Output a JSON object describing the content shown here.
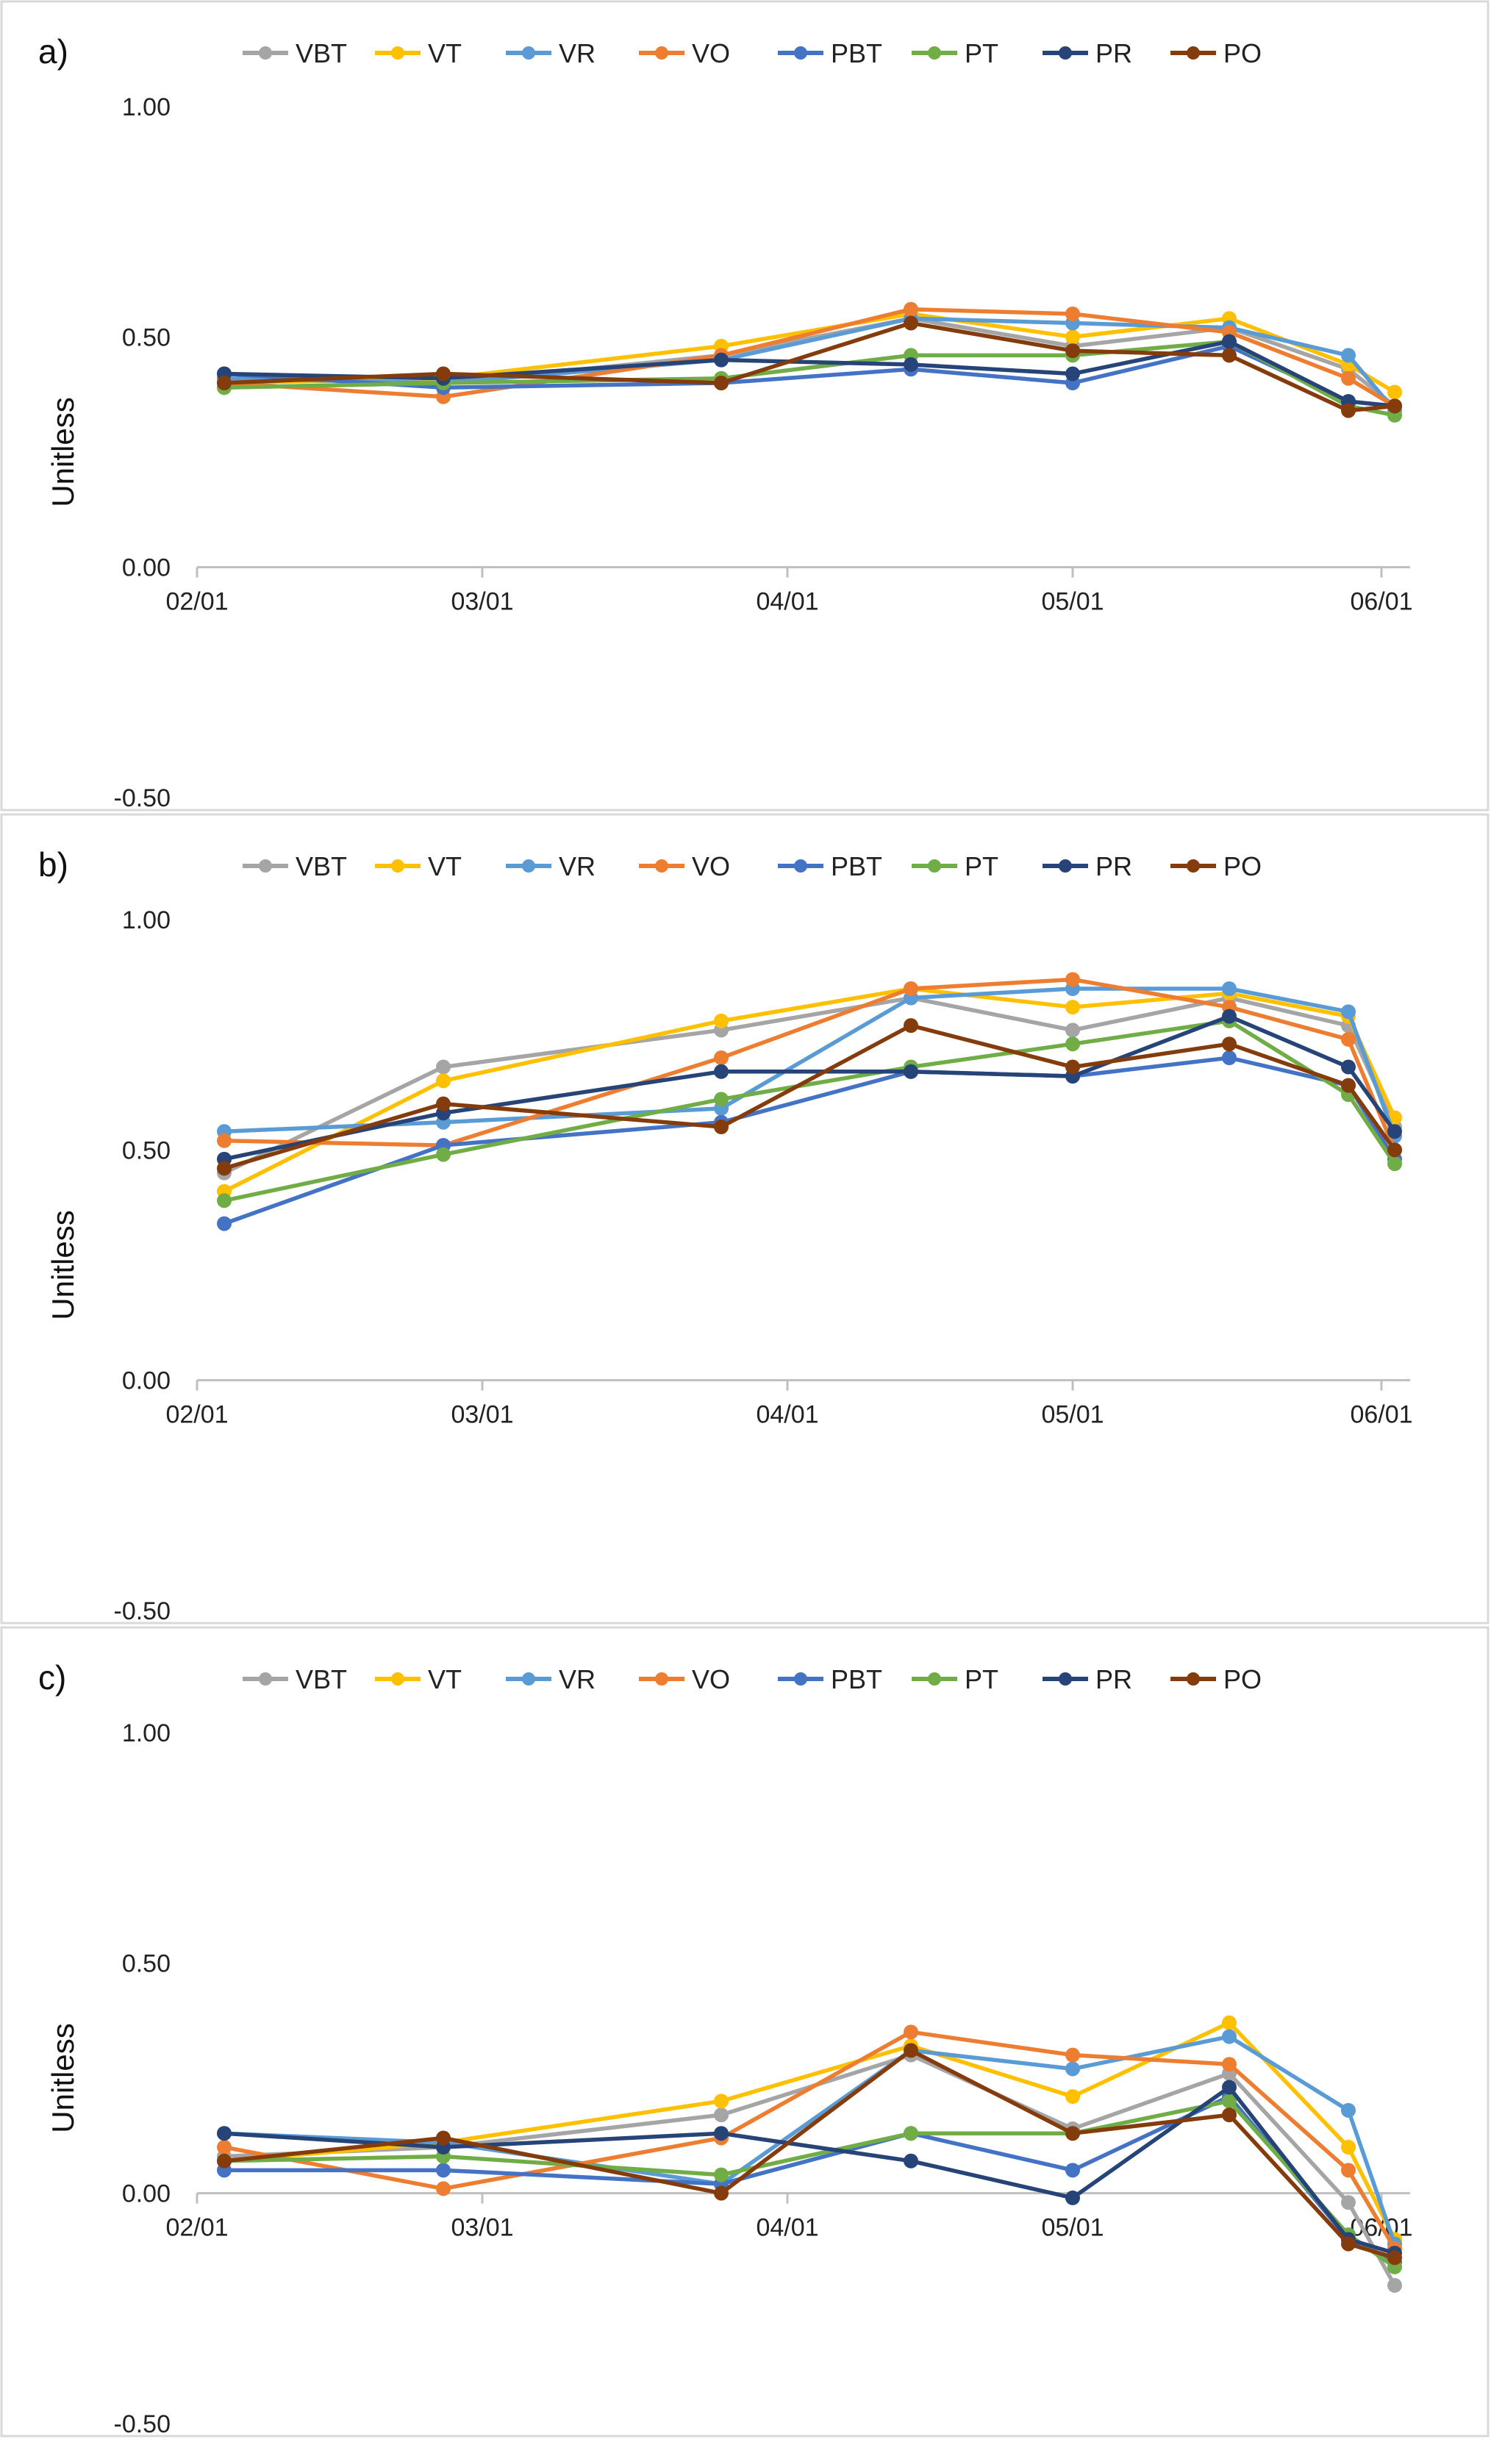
{
  "chart_data": [
    {
      "type": "line",
      "panel_label": "a)",
      "ylabel": "Unitless",
      "ylim": [
        -0.5,
        1.0
      ],
      "yticks": [
        "-0.50",
        "0.00",
        "0.50",
        "1.00"
      ],
      "x_tick_labels": [
        "02/01",
        "03/01",
        "04/01",
        "05/01",
        "06/01"
      ],
      "x_dates": [
        "02/07",
        "02/28",
        "03/28",
        "04/14",
        "05/01",
        "05/17",
        "05/29",
        "06/01"
      ],
      "series": [
        {
          "name": "VBT",
          "color": "#a5a5a5",
          "values": [
            0.39,
            0.4,
            0.46,
            0.54,
            0.48,
            0.52,
            0.43,
            0.35
          ]
        },
        {
          "name": "VT",
          "color": "#ffc000",
          "values": [
            0.4,
            0.41,
            0.48,
            0.55,
            0.5,
            0.54,
            0.44,
            0.38
          ]
        },
        {
          "name": "VR",
          "color": "#5b9bd5",
          "values": [
            0.41,
            0.4,
            0.45,
            0.54,
            0.53,
            0.52,
            0.46,
            0.34
          ]
        },
        {
          "name": "VO",
          "color": "#ed7d31",
          "values": [
            0.4,
            0.37,
            0.46,
            0.56,
            0.55,
            0.51,
            0.41,
            0.35
          ]
        },
        {
          "name": "PBT",
          "color": "#4472c4",
          "values": [
            0.42,
            0.39,
            0.4,
            0.43,
            0.4,
            0.48,
            0.36,
            0.35
          ]
        },
        {
          "name": "PT",
          "color": "#70ad47",
          "values": [
            0.39,
            0.4,
            0.41,
            0.46,
            0.46,
            0.49,
            0.35,
            0.33
          ]
        },
        {
          "name": "PR",
          "color": "#264478",
          "values": [
            0.42,
            0.41,
            0.45,
            0.44,
            0.42,
            0.49,
            0.36,
            0.35
          ]
        },
        {
          "name": "PO",
          "color": "#843c0c",
          "values": [
            0.4,
            0.42,
            0.4,
            0.53,
            0.47,
            0.46,
            0.34,
            0.35
          ]
        }
      ]
    },
    {
      "type": "line",
      "panel_label": "b)",
      "ylabel": "Unitless",
      "ylim": [
        -0.5,
        1.0
      ],
      "yticks": [
        "-0.50",
        "0.00",
        "0.50",
        "1.00"
      ],
      "x_tick_labels": [
        "02/01",
        "03/01",
        "04/01",
        "05/01",
        "06/01"
      ],
      "x_dates": [
        "02/07",
        "02/28",
        "03/28",
        "04/14",
        "05/01",
        "05/17",
        "05/29",
        "06/01"
      ],
      "series": [
        {
          "name": "VBT",
          "color": "#a5a5a5",
          "values": [
            0.45,
            0.68,
            0.76,
            0.83,
            0.76,
            0.83,
            0.77,
            0.55
          ]
        },
        {
          "name": "VT",
          "color": "#ffc000",
          "values": [
            0.41,
            0.65,
            0.78,
            0.85,
            0.81,
            0.84,
            0.79,
            0.57
          ]
        },
        {
          "name": "VR",
          "color": "#5b9bd5",
          "values": [
            0.54,
            0.56,
            0.59,
            0.83,
            0.85,
            0.85,
            0.8,
            0.53
          ]
        },
        {
          "name": "VO",
          "color": "#ed7d31",
          "values": [
            0.52,
            0.51,
            0.7,
            0.85,
            0.87,
            0.81,
            0.74,
            0.5
          ]
        },
        {
          "name": "PBT",
          "color": "#4472c4",
          "values": [
            0.34,
            0.51,
            0.56,
            0.67,
            0.66,
            0.7,
            0.64,
            0.48
          ]
        },
        {
          "name": "PT",
          "color": "#70ad47",
          "values": [
            0.39,
            0.49,
            0.61,
            0.68,
            0.73,
            0.78,
            0.62,
            0.47
          ]
        },
        {
          "name": "PR",
          "color": "#264478",
          "values": [
            0.48,
            0.58,
            0.67,
            0.67,
            0.66,
            0.79,
            0.68,
            0.54
          ]
        },
        {
          "name": "PO",
          "color": "#843c0c",
          "values": [
            0.46,
            0.6,
            0.55,
            0.77,
            0.68,
            0.73,
            0.64,
            0.5
          ]
        }
      ]
    },
    {
      "type": "line",
      "panel_label": "c)",
      "ylabel": "Unitless",
      "ylim": [
        -0.5,
        1.0
      ],
      "yticks": [
        "-0.50",
        "0.00",
        "0.50",
        "1.00"
      ],
      "x_tick_labels": [
        "02/01",
        "03/01",
        "04/01",
        "05/01",
        "06/01"
      ],
      "x_dates": [
        "02/07",
        "02/28",
        "03/28",
        "04/14",
        "05/01",
        "05/17",
        "05/29",
        "06/01"
      ],
      "series": [
        {
          "name": "VBT",
          "color": "#a5a5a5",
          "values": [
            0.08,
            0.1,
            0.17,
            0.3,
            0.14,
            0.26,
            -0.02,
            -0.2
          ]
        },
        {
          "name": "VT",
          "color": "#ffc000",
          "values": [
            0.07,
            0.11,
            0.2,
            0.32,
            0.21,
            0.37,
            0.1,
            -0.1
          ]
        },
        {
          "name": "VR",
          "color": "#5b9bd5",
          "values": [
            0.13,
            0.11,
            0.02,
            0.31,
            0.27,
            0.34,
            0.18,
            -0.11
          ]
        },
        {
          "name": "VO",
          "color": "#ed7d31",
          "values": [
            0.1,
            0.01,
            0.12,
            0.35,
            0.3,
            0.28,
            0.05,
            -0.12
          ]
        },
        {
          "name": "PBT",
          "color": "#4472c4",
          "values": [
            0.05,
            0.05,
            0.02,
            0.13,
            0.05,
            0.21,
            -0.1,
            -0.15
          ]
        },
        {
          "name": "PT",
          "color": "#70ad47",
          "values": [
            0.07,
            0.08,
            0.04,
            0.13,
            0.13,
            0.2,
            -0.09,
            -0.16
          ]
        },
        {
          "name": "PR",
          "color": "#264478",
          "values": [
            0.13,
            0.1,
            0.13,
            0.07,
            -0.01,
            0.23,
            -0.1,
            -0.13
          ]
        },
        {
          "name": "PO",
          "color": "#843c0c",
          "values": [
            0.07,
            0.12,
            0.0,
            0.31,
            0.13,
            0.17,
            -0.11,
            -0.14
          ]
        }
      ]
    }
  ]
}
